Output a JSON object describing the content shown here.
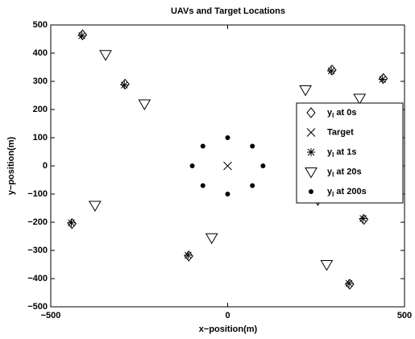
{
  "chart_data": {
    "type": "scatter",
    "title": "UAVs and Target Locations",
    "x_label": "x−position(m)",
    "y_label": "y−position(m)",
    "xlim": [
      -500,
      500
    ],
    "ylim": [
      -500,
      500
    ],
    "xticks": [
      {
        "value": -500,
        "label": "−500"
      },
      0,
      500
    ],
    "yticks": [
      {
        "value": -500,
        "label": "−500"
      },
      {
        "value": -400,
        "label": "−400"
      },
      {
        "value": -300,
        "label": "−300"
      },
      {
        "value": -200,
        "label": "−200"
      },
      {
        "value": -100,
        "label": "−100"
      },
      0,
      100,
      200,
      300,
      400,
      500
    ],
    "legend": "right",
    "series": [
      {
        "name": "yI at 0s",
        "marker": "diamond",
        "color": "#000000",
        "x": [
          -410,
          -290,
          -440,
          -110,
          295,
          440,
          385,
          345
        ],
        "values": [
          465,
          290,
          -205,
          -320,
          340,
          310,
          -190,
          -420
        ]
      },
      {
        "name": "Target",
        "marker": "x",
        "color": "#000000",
        "x": [
          0
        ],
        "values": [
          0
        ]
      },
      {
        "name": "yI at  1s",
        "marker": "star",
        "color": "#000000",
        "x": [
          -412,
          -292,
          -442,
          -112,
          293,
          438,
          383,
          343
        ],
        "values": [
          462,
          287,
          -202,
          -317,
          337,
          307,
          -187,
          -417
        ]
      },
      {
        "name": "yI at  20s",
        "marker": "triangle",
        "color": "#000000",
        "x": [
          -345,
          -235,
          -375,
          -45,
          220,
          373,
          255,
          280
        ],
        "values": [
          395,
          220,
          -140,
          -255,
          270,
          240,
          -120,
          -350
        ]
      },
      {
        "name": "yI at  200s",
        "marker": "dot",
        "color": "#000000",
        "x": [
          0,
          70,
          100,
          70,
          0,
          -70,
          -100,
          -70
        ],
        "values": [
          100,
          70,
          0,
          -70,
          -100,
          -70,
          0,
          70
        ]
      }
    ]
  }
}
